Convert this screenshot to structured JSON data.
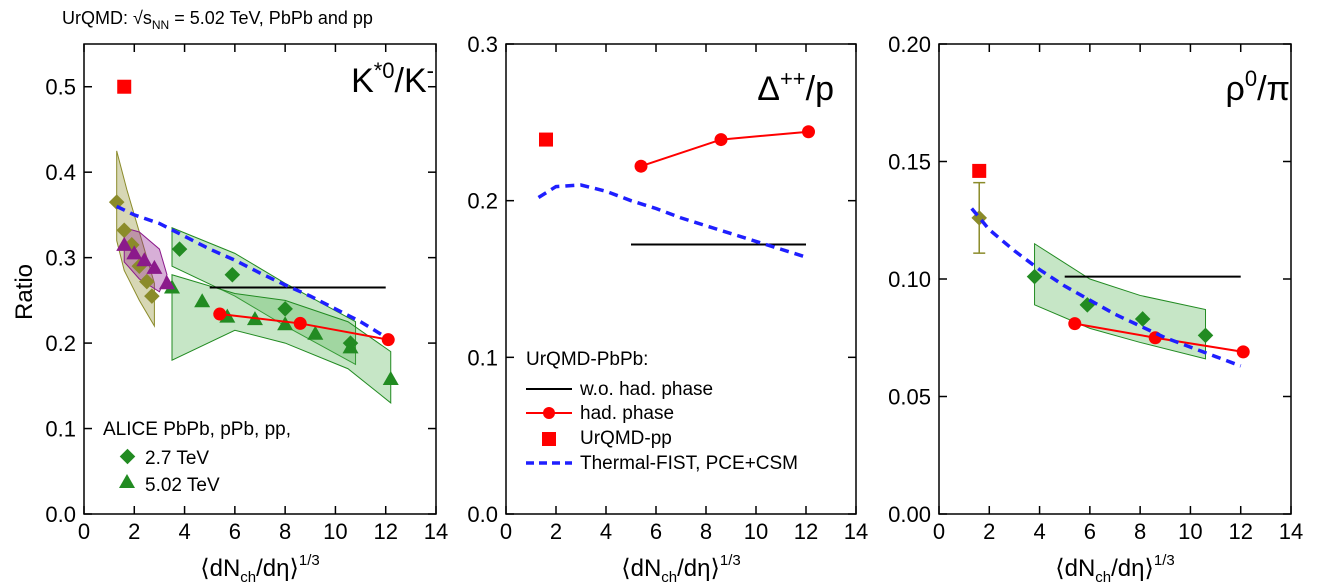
{
  "header": {
    "main": "UrQMD: √s",
    "sub": "NN",
    "rest": " = 5.02 TeV, PbPb and pp"
  },
  "xaxis": {
    "title_main": "⟨dN",
    "title_sub": "ch",
    "title_mid": "/dη⟩",
    "title_sup": "1/3",
    "ticks": [
      "0",
      "2",
      "4",
      "6",
      "8",
      "10",
      "12",
      "14"
    ]
  },
  "yaxis": {
    "title": "Ratio"
  },
  "colors": {
    "alice_green": "#228b22",
    "band_green": "#5cb85c",
    "urqmd_red": "#ff0000",
    "pp_red": "#ff0000",
    "fist_blue": "#1f1fff",
    "olive": "#8b8b2a",
    "purple": "#8b1a8b"
  },
  "legend_left": {
    "title": "ALICE PbPb, pPb, pp,",
    "items": [
      {
        "marker": "diamond",
        "label": "2.7 TeV"
      },
      {
        "marker": "triangle",
        "label": "5.02 TeV"
      }
    ]
  },
  "legend_mid": {
    "title": "UrQMD-PbPb:",
    "items": [
      {
        "marker": "line-black",
        "label": "w.o. had. phase"
      },
      {
        "marker": "line-red-circle",
        "label": "had. phase"
      },
      {
        "marker": "square-red",
        "label": "UrQMD-pp"
      },
      {
        "marker": "dashed-blue",
        "label": "Thermal-FIST, PCE+CSM"
      }
    ]
  },
  "chart_data": [
    {
      "type": "scatter",
      "label_main": "K",
      "label_sup": "*0",
      "label_mid": "/K",
      "label_sup2": "-",
      "xlim": [
        0,
        14
      ],
      "ylim": [
        0,
        0.55
      ],
      "yticks": [
        "0.0",
        "0.1",
        "0.2",
        "0.3",
        "0.4",
        "0.5"
      ],
      "series": [
        {
          "name": "2.7 TeV",
          "x": [
            3.8,
            5.9,
            8.0,
            10.6
          ],
          "y": [
            0.31,
            0.28,
            0.24,
            0.2
          ]
        },
        {
          "name": "5.02 TeV",
          "x": [
            3.5,
            4.7,
            5.7,
            6.8,
            8.0,
            9.2,
            10.6,
            12.2
          ],
          "y": [
            0.265,
            0.249,
            0.231,
            0.228,
            0.222,
            0.211,
            0.195,
            0.158
          ]
        },
        {
          "name": "pp 2.7 TeV",
          "x": [
            1.3,
            1.6,
            1.9,
            2.2,
            2.5,
            2.7
          ],
          "y": [
            0.365,
            0.332,
            0.315,
            0.29,
            0.272,
            0.255
          ]
        },
        {
          "name": "pPb",
          "x": [
            1.6,
            2.0,
            2.4,
            2.8,
            3.3
          ],
          "y": [
            0.315,
            0.305,
            0.297,
            0.288,
            0.27
          ]
        },
        {
          "name": "had. phase",
          "x": [
            5.4,
            8.6,
            12.1
          ],
          "y": [
            0.234,
            0.223,
            0.204
          ]
        },
        {
          "name": "w.o. had. phase",
          "x": [
            5.0,
            12.0
          ],
          "y": [
            0.265,
            0.265
          ]
        },
        {
          "name": "UrQMD-pp",
          "x": [
            1.6
          ],
          "y": [
            0.5
          ]
        },
        {
          "name": "Thermal-FIST, PCE+CSM",
          "x": [
            1.3,
            2.0,
            3.0,
            4.0,
            5.0,
            6.0,
            7.0,
            8.0,
            9.0,
            10.0,
            11.0,
            12.0
          ],
          "y": [
            0.36,
            0.35,
            0.34,
            0.325,
            0.31,
            0.297,
            0.282,
            0.268,
            0.255,
            0.24,
            0.225,
            0.207
          ]
        }
      ]
    },
    {
      "type": "scatter",
      "label_main": "Δ",
      "label_sup": "++",
      "label_mid": "/p",
      "label_sup2": "",
      "xlim": [
        0,
        14
      ],
      "ylim": [
        0,
        0.3
      ],
      "yticks": [
        "0.0",
        "0.1",
        "0.2",
        "0.3"
      ],
      "series": [
        {
          "name": "had. phase",
          "x": [
            5.4,
            8.6,
            12.1
          ],
          "y": [
            0.222,
            0.239,
            0.244
          ]
        },
        {
          "name": "w.o. had. phase",
          "x": [
            5.0,
            12.0
          ],
          "y": [
            0.172,
            0.172
          ]
        },
        {
          "name": "UrQMD-pp",
          "x": [
            1.6
          ],
          "y": [
            0.239
          ]
        },
        {
          "name": "Thermal-FIST, PCE+CSM",
          "x": [
            1.3,
            2.0,
            3.0,
            4.0,
            5.0,
            6.0,
            7.0,
            8.0,
            9.0,
            10.0,
            11.0,
            12.0
          ],
          "y": [
            0.202,
            0.209,
            0.21,
            0.206,
            0.2,
            0.195,
            0.189,
            0.184,
            0.179,
            0.174,
            0.169,
            0.164
          ]
        }
      ]
    },
    {
      "type": "scatter",
      "label_main": "ρ",
      "label_sup": "0",
      "label_mid": "/π",
      "label_sup2": "",
      "xlim": [
        0,
        14
      ],
      "ylim": [
        0,
        0.2
      ],
      "yticks": [
        "0.00",
        "0.05",
        "0.10",
        "0.15",
        "0.20"
      ],
      "series": [
        {
          "name": "2.7 TeV",
          "x": [
            3.8,
            5.9,
            8.1,
            10.6
          ],
          "y": [
            0.101,
            0.089,
            0.083,
            0.076
          ]
        },
        {
          "name": "pp 2.7 TeV",
          "x": [
            1.6
          ],
          "y": [
            0.126
          ],
          "err": [
            0.015
          ]
        },
        {
          "name": "had. phase",
          "x": [
            5.4,
            8.6,
            12.1
          ],
          "y": [
            0.081,
            0.075,
            0.069
          ]
        },
        {
          "name": "w.o. had. phase",
          "x": [
            5.0,
            12.0
          ],
          "y": [
            0.101,
            0.101
          ]
        },
        {
          "name": "UrQMD-pp",
          "x": [
            1.6
          ],
          "y": [
            0.146
          ]
        },
        {
          "name": "Thermal-FIST, PCE+CSM",
          "x": [
            1.3,
            2.0,
            3.0,
            4.0,
            5.0,
            6.0,
            7.0,
            8.0,
            9.0,
            10.0,
            11.0,
            12.0
          ],
          "y": [
            0.13,
            0.121,
            0.112,
            0.104,
            0.097,
            0.091,
            0.085,
            0.08,
            0.075,
            0.071,
            0.067,
            0.063
          ]
        }
      ]
    }
  ]
}
